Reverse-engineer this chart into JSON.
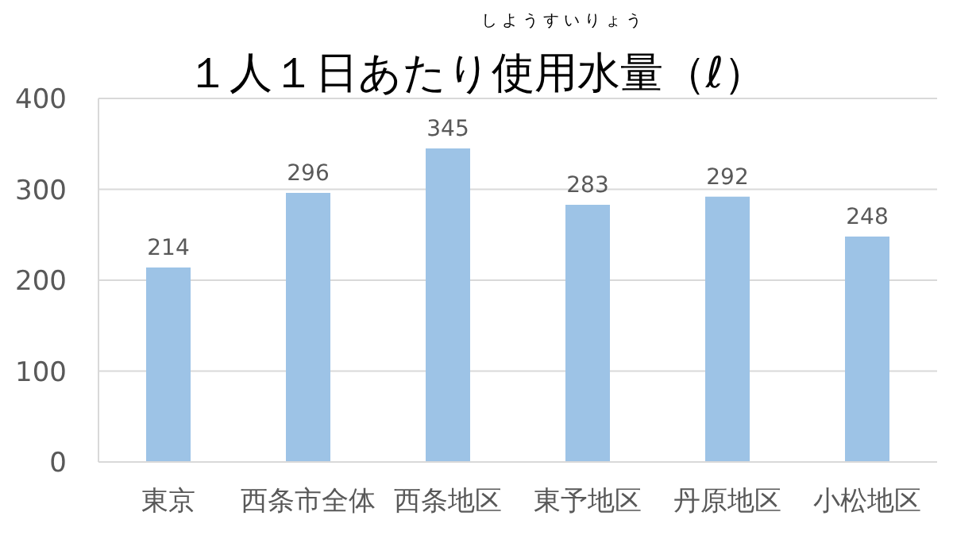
{
  "chart_data": {
    "type": "bar",
    "title": "１人１日あたり使用水量（ℓ）",
    "annotations": [
      "しようすいりょう"
    ],
    "categories": [
      "東京",
      "西条市全体",
      "西条地区",
      "東予地区",
      "丹原地区",
      "小松地区"
    ],
    "values": [
      214,
      296,
      345,
      283,
      292,
      248
    ],
    "color": "#9dc3e6",
    "ylim": [
      0,
      400
    ],
    "yticks": [
      0,
      100,
      200,
      300,
      400
    ],
    "grid": "y",
    "data_labels": true
  }
}
